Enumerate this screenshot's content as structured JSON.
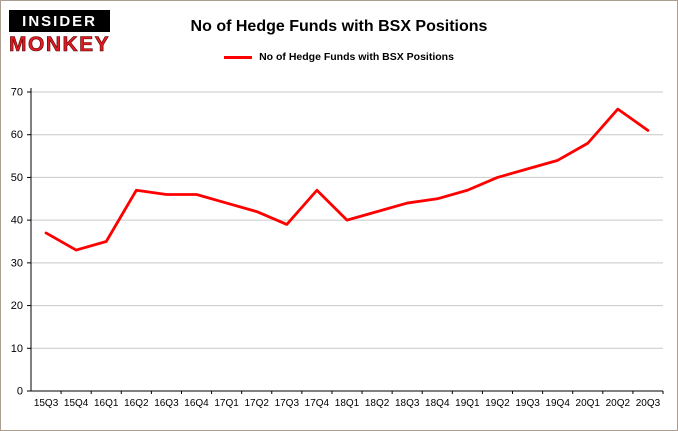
{
  "logo": {
    "line1": "INSIDER",
    "line2": "MONKEY"
  },
  "header": {
    "title": "No of Hedge Funds with BSX Positions"
  },
  "legend": {
    "label": "No of Hedge Funds with BSX Positions",
    "color": "#ff0000"
  },
  "chart_data": {
    "type": "line",
    "title": "No of Hedge Funds with BSX Positions",
    "categories": [
      "15Q3",
      "15Q4",
      "16Q1",
      "16Q2",
      "16Q3",
      "16Q4",
      "17Q1",
      "17Q2",
      "17Q3",
      "17Q4",
      "18Q1",
      "18Q2",
      "18Q3",
      "18Q4",
      "19Q1",
      "19Q2",
      "19Q3",
      "19Q4",
      "20Q1",
      "20Q2",
      "20Q3"
    ],
    "values": [
      37,
      33,
      35,
      47,
      46,
      46,
      44,
      42,
      39,
      47,
      40,
      42,
      44,
      45,
      47,
      50,
      52,
      54,
      58,
      66,
      61
    ],
    "series_name": "No of Hedge Funds with BSX Positions",
    "line_color": "#ff0000",
    "xlabel": "",
    "ylabel": "",
    "ylim": [
      0,
      70
    ],
    "ytick_step": 10,
    "grid": true,
    "gridline_color": "#c9c9c9",
    "axis_color": "#000000",
    "legend_position": "top"
  }
}
